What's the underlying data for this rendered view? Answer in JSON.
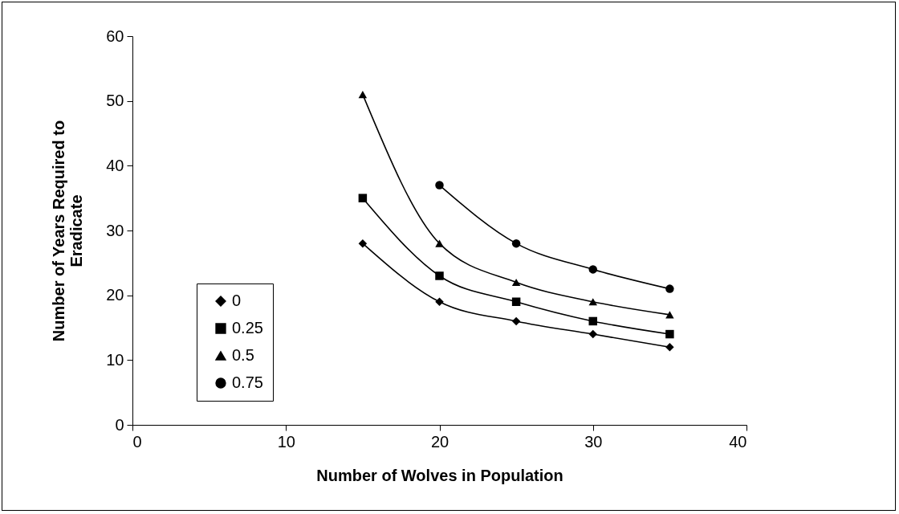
{
  "chart_data": {
    "type": "line",
    "xlabel": "Number of Wolves in Population",
    "ylabel": "Number of Years Required to Eradicate",
    "xlim": [
      0,
      40
    ],
    "xticks": [
      0,
      10,
      20,
      30,
      40
    ],
    "ylim": [
      0,
      60
    ],
    "yticks": [
      0,
      10,
      20,
      30,
      40,
      50,
      60
    ],
    "grid": false,
    "legend": "bottom left",
    "line_style": "solid",
    "series": [
      {
        "name": "0",
        "color": "#000000",
        "marker": "diamond",
        "x": [
          15,
          20,
          25,
          30,
          35
        ],
        "values": [
          28,
          19,
          16,
          14,
          12
        ]
      },
      {
        "name": "0.25",
        "color": "#000000",
        "marker": "square",
        "x": [
          15,
          20,
          25,
          30,
          35
        ],
        "values": [
          35,
          23,
          19,
          16,
          14
        ]
      },
      {
        "name": "0.5",
        "color": "#000000",
        "marker": "triangle",
        "x": [
          15,
          20,
          25,
          30,
          35
        ],
        "values": [
          51,
          28,
          22,
          19,
          17
        ]
      },
      {
        "name": "0.75",
        "color": "#000000",
        "marker": "circle",
        "x": [
          20,
          25,
          30,
          35
        ],
        "values": [
          37,
          28,
          24,
          21
        ]
      }
    ]
  }
}
